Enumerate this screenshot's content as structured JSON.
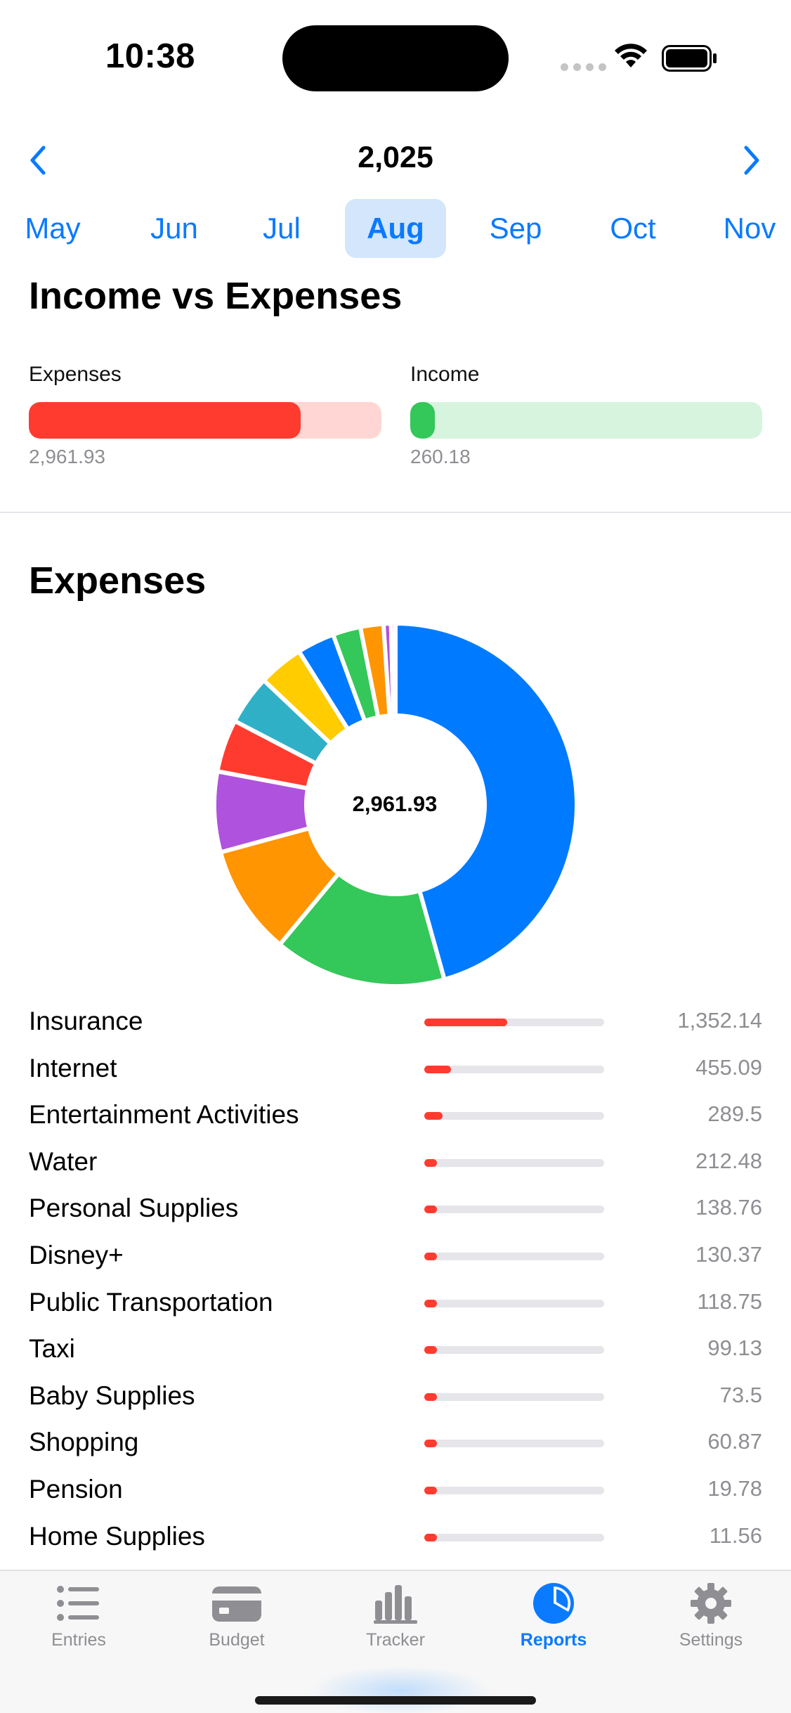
{
  "status_bar": {
    "time": "10:38"
  },
  "year_nav": {
    "title": "2,025"
  },
  "months": [
    {
      "label": "May",
      "selected": false
    },
    {
      "label": "Jun",
      "selected": false
    },
    {
      "label": "Jul",
      "selected": false
    },
    {
      "label": "Aug",
      "selected": true
    },
    {
      "label": "Sep",
      "selected": false
    },
    {
      "label": "Oct",
      "selected": false
    },
    {
      "label": "Nov",
      "selected": false
    }
  ],
  "income_vs_expenses": {
    "title": "Income vs Expenses",
    "expenses": {
      "label": "Expenses",
      "value": "2,961.93",
      "fill": 0.77,
      "color": "#ff3b30",
      "track_color": "#ffd6d3"
    },
    "income": {
      "label": "Income",
      "value": "260.18",
      "fill": 0.07,
      "color": "#34c759",
      "track_color": "#d7f4de"
    }
  },
  "expenses_section": {
    "title": "Expenses",
    "total": "2,961.93"
  },
  "chart_data": {
    "type": "pie",
    "center_label": "2,961.93",
    "slices": [
      {
        "label": "Insurance",
        "value": 1352.14,
        "color": "#007aff"
      },
      {
        "label": "Internet",
        "value": 455.09,
        "color": "#34c759"
      },
      {
        "label": "Entertainment Activities",
        "value": 289.5,
        "color": "#ff9500"
      },
      {
        "label": "Water",
        "value": 212.48,
        "color": "#af52de"
      },
      {
        "label": "Personal Supplies",
        "value": 138.76,
        "color": "#ff3b30"
      },
      {
        "label": "Disney+",
        "value": 130.37,
        "color": "#30b0c7"
      },
      {
        "label": "Public Transportation",
        "value": 118.75,
        "color": "#ffcc00"
      },
      {
        "label": "Taxi",
        "value": 99.13,
        "color": "#007aff"
      },
      {
        "label": "Baby Supplies",
        "value": 73.5,
        "color": "#34c759"
      },
      {
        "label": "Shopping",
        "value": 60.87,
        "color": "#ff9500"
      },
      {
        "label": "Pension",
        "value": 19.78,
        "color": "#af52de"
      },
      {
        "label": "Home Supplies",
        "value": 11.56,
        "color": "#ff3b30"
      }
    ]
  },
  "categories": [
    {
      "name": "Insurance",
      "value": "1,352.14",
      "fill": 0.46
    },
    {
      "name": "Internet",
      "value": "455.09",
      "fill": 0.15
    },
    {
      "name": "Entertainment Activities",
      "value": "289.5",
      "fill": 0.1
    },
    {
      "name": "Water",
      "value": "212.48",
      "fill": 0.07
    },
    {
      "name": "Personal Supplies",
      "value": "138.76",
      "fill": 0.05
    },
    {
      "name": "Disney+",
      "value": "130.37",
      "fill": 0.05
    },
    {
      "name": "Public Transportation",
      "value": "118.75",
      "fill": 0.04
    },
    {
      "name": "Taxi",
      "value": "99.13",
      "fill": 0.03
    },
    {
      "name": "Baby Supplies",
      "value": "73.5",
      "fill": 0.025
    },
    {
      "name": "Shopping",
      "value": "60.87",
      "fill": 0.02
    },
    {
      "name": "Pension",
      "value": "19.78",
      "fill": 0.007
    },
    {
      "name": "Home Supplies",
      "value": "11.56",
      "fill": 0.004
    }
  ],
  "tab_bar": {
    "tabs": [
      {
        "label": "Entries",
        "icon": "list-icon",
        "active": false
      },
      {
        "label": "Budget",
        "icon": "card-icon",
        "active": false
      },
      {
        "label": "Tracker",
        "icon": "bar-chart-icon",
        "active": false
      },
      {
        "label": "Reports",
        "icon": "pie-chart-icon",
        "active": true
      },
      {
        "label": "Settings",
        "icon": "gear-icon",
        "active": false
      }
    ]
  },
  "colors": {
    "accent": "#0a7aff",
    "expense": "#ff3b30",
    "income": "#34c759"
  }
}
